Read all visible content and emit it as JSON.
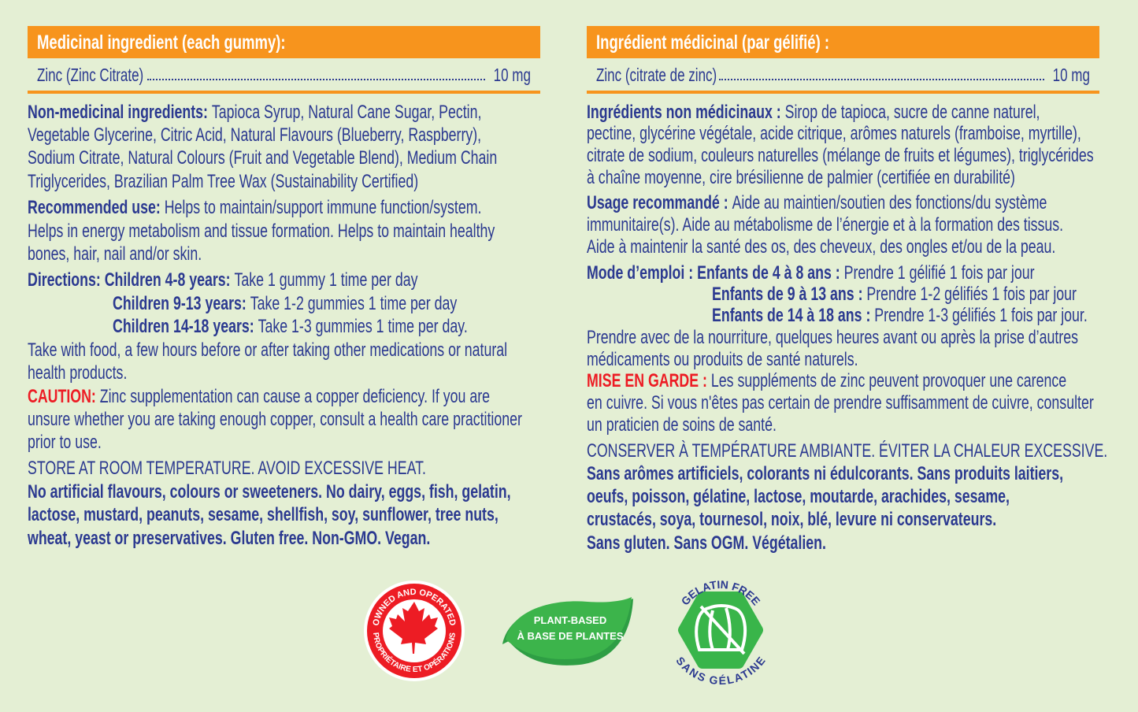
{
  "colors": {
    "background": "#e4efd4",
    "accent": "#f7941d",
    "text": "#2b3990",
    "caution": "#ed1c24",
    "logo_green": "#39b54a",
    "logo_red": "#ed1c24"
  },
  "english": {
    "header": "Medicinal ingredient (each gummy):",
    "ingredient": {
      "name": "Zinc (Zinc Citrate)",
      "amount": "10 mg"
    },
    "lines": [
      [
        {
          "b": "Non-medicinal ingredients: "
        },
        {
          "t": "Tapioca Syrup, Natural Cane Sugar, Pectin,"
        }
      ],
      [
        {
          "t": "Vegetable Glycerine, Citric Acid, Natural Flavours (Blueberry, Raspberry),"
        }
      ],
      [
        {
          "t": "Sodium Citrate, Natural Colours (Fruit and Vegetable Blend), Medium Chain"
        }
      ],
      [
        {
          "t": "Triglycerides, Brazilian Palm Tree Wax (Sustainability Certified)"
        }
      ],
      [
        {
          "b": "Recommended use: "
        },
        {
          "t": "Helps to maintain/support immune function/system."
        }
      ],
      [
        {
          "t": "Helps in energy metabolism and tissue formation. Helps to maintain healthy"
        }
      ],
      [
        {
          "t": "bones, hair, nail and/or skin."
        }
      ],
      [
        {
          "b": "Directions: Children 4-8 years: "
        },
        {
          "t": "Take 1 gummy 1 time per day"
        }
      ],
      [
        {
          "b": "Children 9-13 years: "
        },
        {
          "t": "Take 1-2 gummies 1 time per day"
        }
      ],
      [
        {
          "b": "Children 14-18 years: "
        },
        {
          "t": "Take 1-3 gummies 1 time per day."
        }
      ],
      [
        {
          "t": "Take with food, a few hours before or after taking other medications or natural"
        }
      ],
      [
        {
          "t": "health products."
        }
      ],
      [
        {
          "r": "CAUTION: "
        },
        {
          "t": "Zinc supplementation can cause a copper deficiency. If you are"
        }
      ],
      [
        {
          "t": "unsure whether you are taking enough copper, consult a health care practitioner"
        }
      ],
      [
        {
          "t": "prior to use."
        }
      ],
      [
        {
          "t": "STORE AT ROOM TEMPERATURE. AVOID EXCESSIVE HEAT."
        }
      ],
      [
        {
          "b": "No artificial flavours, colours or sweeteners. No dairy, eggs, fish, gelatin,"
        }
      ],
      [
        {
          "b": "lactose, mustard, peanuts, sesame, shellfish, soy, sunflower, tree nuts,"
        }
      ],
      [
        {
          "b": "wheat, yeast or preservatives. Gluten free. Non-GMO. Vegan."
        }
      ]
    ]
  },
  "french": {
    "header": "Ingrédient médicinal (par gélifié) :",
    "ingredient": {
      "name": "Zinc (citrate de zinc)",
      "amount": "10 mg"
    },
    "lines": [
      [
        {
          "b": "Ingrédients non médicinaux : "
        },
        {
          "t": "Sirop de tapioca, sucre de canne naturel,"
        }
      ],
      [
        {
          "t": "pectine, glycérine végétale, acide citrique, arômes naturels (framboise, myrtille),"
        }
      ],
      [
        {
          "t": "citrate de sodium, couleurs naturelles (mélange de fruits et légumes), triglycérides"
        }
      ],
      [
        {
          "t": "à chaîne moyenne, cire brésilienne de palmier (certifiée en durabilité)"
        }
      ],
      [
        {
          "b": "Usage recommandé : "
        },
        {
          "t": "Aide au maintien/soutien des fonctions/du système"
        }
      ],
      [
        {
          "t": "immunitaire(s). Aide au métabolisme de l’énergie et à la formation des tissus."
        }
      ],
      [
        {
          "t": "Aide à maintenir la santé des os, des cheveux, des ongles et/ou de la peau."
        }
      ],
      [
        {
          "b": "Mode d’emploi : Enfants de 4 à 8 ans : "
        },
        {
          "t": "Prendre 1 gélifié 1 fois par jour"
        }
      ],
      [
        {
          "b": "Enfants de 9 à 13 ans : "
        },
        {
          "t": "Prendre 1-2 gélifiés 1 fois par jour"
        }
      ],
      [
        {
          "b": "Enfants de 14 à 18 ans : "
        },
        {
          "t": "Prendre 1-3 gélifiés 1 fois par jour."
        }
      ],
      [
        {
          "t": "Prendre avec de la nourriture, quelques heures avant ou après la prise d’autres"
        }
      ],
      [
        {
          "t": "médicaments ou produits de santé naturels."
        }
      ],
      [
        {
          "r": "MISE EN GARDE : "
        },
        {
          "t": "Les suppléments de zinc peuvent provoquer une carence"
        }
      ],
      [
        {
          "t": "en cuivre. Si vous n'êtes pas certain de prendre suffisamment de cuivre, consulter"
        }
      ],
      [
        {
          "t": "un praticien de soins de santé."
        }
      ],
      [
        {
          "t": "CONSERVER À TEMPÉRATURE AMBIANTE. ÉVITER LA CHALEUR EXCESSIVE."
        }
      ],
      [
        {
          "b": "Sans arômes artificiels, colorants ni édulcorants. Sans produits laitiers,"
        }
      ],
      [
        {
          "b": "oeufs, poisson, gélatine, lactose, moutarde, arachides, sesame,"
        }
      ],
      [
        {
          "b": "crustacés, soya, tournesol, noix, blé, levure ni conservateurs."
        }
      ],
      [
        {
          "b": "Sans gluten. Sans OGM. Végétalien."
        }
      ]
    ]
  },
  "logos": {
    "canada": {
      "top": "OWNED AND OPERATED",
      "bottom": "PROPRIÉTAIRE ET OPÉRATIONS",
      "icon": "maple-leaf"
    },
    "plant": {
      "line1": "PLANT-BASED",
      "line2": "À BASE DE PLANTES",
      "icon": "leaf"
    },
    "gelatin": {
      "top": "GELATIN FREE",
      "bottom": "SANS GÉLATINE",
      "icon": "no-gelatin"
    }
  }
}
